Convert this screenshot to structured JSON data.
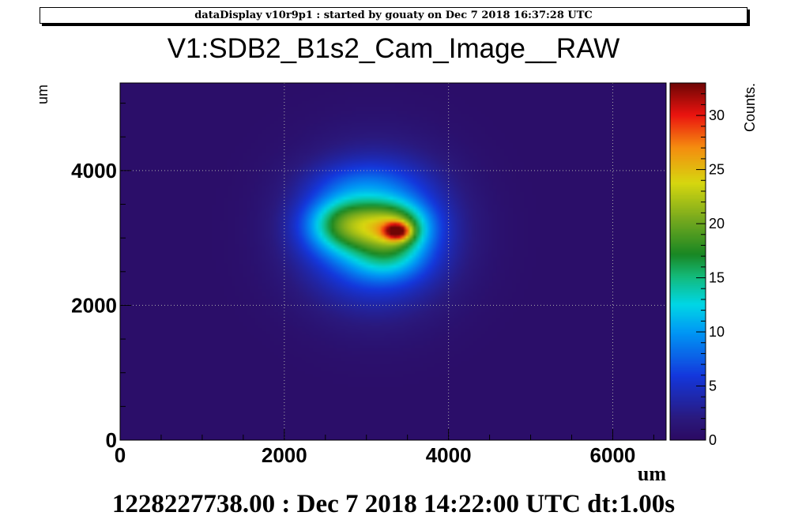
{
  "header": {
    "text": "dataDisplay v10r9p1 : started by gouaty on Dec  7 2018 16:37:28 UTC"
  },
  "footer": {
    "text": "1228227738.00 : Dec  7 2018 14:22:00 UTC dt:1.00s"
  },
  "colors": {
    "background_plot": "#2b1a6e",
    "grid": "#aaaaaa"
  },
  "chart_data": {
    "type": "heatmap",
    "title": "V1:SDB2_B1s2_Cam_Image__RAW",
    "xlabel": "um",
    "ylabel": "um",
    "zlabel": "Counts.",
    "xlim": [
      0,
      6650
    ],
    "ylim": [
      0,
      5300
    ],
    "zlim": [
      0,
      33
    ],
    "x_ticks": [
      0,
      2000,
      4000,
      6000
    ],
    "x_tick_labels": [
      "0",
      "2000",
      "4000",
      "6000"
    ],
    "y_ticks": [
      0,
      2000,
      4000
    ],
    "y_tick_labels": [
      "0",
      "2000",
      "4000"
    ],
    "z_ticks": [
      0,
      5,
      10,
      15,
      20,
      25,
      30
    ],
    "z_tick_labels": [
      "0",
      "5",
      "10",
      "15",
      "20",
      "25",
      "30"
    ],
    "grid": true,
    "colormap": "rainbow (purple-blue-cyan-green-yellow-red)",
    "features": [
      {
        "name": "halo",
        "x": 3100,
        "y": 3100,
        "sx": 620,
        "sy": 720,
        "peak": 10
      },
      {
        "name": "left lobe",
        "x": 2750,
        "y": 3200,
        "sx": 330,
        "sy": 280,
        "peak": 11
      },
      {
        "name": "right lobe",
        "x": 3350,
        "y": 3150,
        "sx": 280,
        "sy": 260,
        "peak": 12
      },
      {
        "name": "hot spot",
        "x": 3380,
        "y": 3100,
        "sx": 110,
        "sy": 90,
        "peak": 14
      },
      {
        "name": "lower lobe",
        "x": 3250,
        "y": 2650,
        "sx": 320,
        "sy": 220,
        "peak": 4
      },
      {
        "name": "upper arc",
        "x": 2950,
        "y": 3850,
        "sx": 450,
        "sy": 200,
        "peak": 2
      }
    ]
  }
}
